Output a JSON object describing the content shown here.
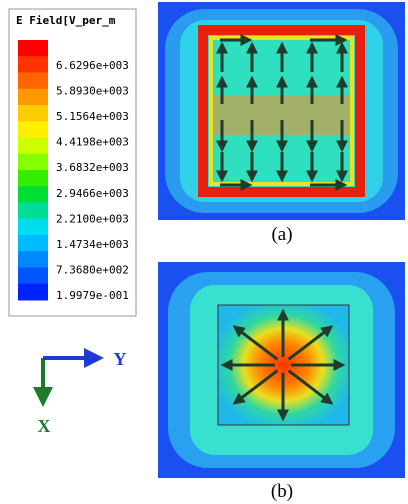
{
  "legend": {
    "title": "E Field[V_per_m",
    "labels": [
      "6.6296e+003",
      "5.8930e+003",
      "5.1564e+003",
      "4.4198e+003",
      "3.6832e+003",
      "2.9466e+003",
      "2.2100e+003",
      "1.4734e+003",
      "7.3680e+002",
      "1.9979e-001"
    ]
  },
  "axes": {
    "x": "X",
    "y": "Y"
  },
  "captions": [
    "(a)",
    "(b)"
  ]
}
